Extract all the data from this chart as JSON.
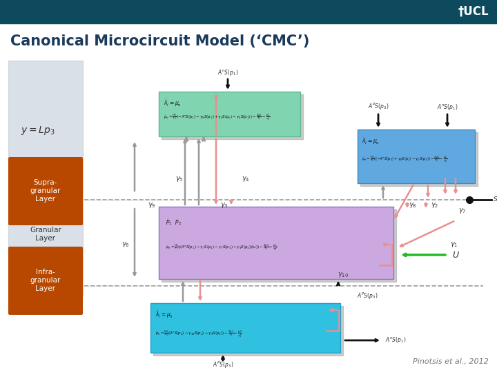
{
  "title": "Canonical Microcircuit Model (‘CMC’)",
  "title_color": "#1a3a5c",
  "bg_color": "#ffffff",
  "header_color": "#0d4a5e",
  "ucl_text": "†UCL",
  "ucl_color": "#ffffff",
  "citation": "Pinotsis et al., 2012",
  "citation_color": "#777777",
  "layer_labels": [
    "Supra-\ngranular\nLayer",
    "Granular\nLayer",
    "Infra-\ngranular\nLayer"
  ],
  "layer_color_orange": "#b84800",
  "layer_text_color": "#ffffff",
  "box_green_color": "#80d4b0",
  "box_cyan_color": "#30c0e0",
  "box_purple_color": "#cca8e0",
  "box_blue_color": "#60a8e0",
  "box_shadow_color": "#aaaaaa",
  "arrow_pink": "#e89090",
  "arrow_gray": "#999999",
  "arrow_black": "#111111",
  "arrow_green": "#22bb22",
  "dashed_line_color": "#999999",
  "dot_color": "#111111",
  "eq_color": "#111111",
  "gamma_color": "#333333",
  "brain_color": "#c0ccd8"
}
